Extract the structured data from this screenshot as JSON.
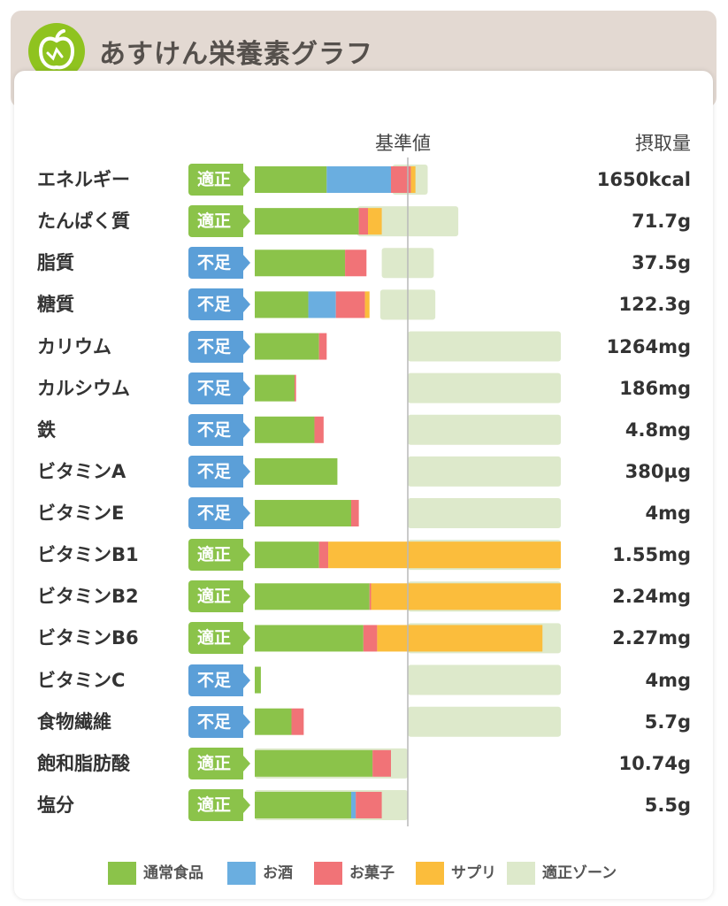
{
  "header": {
    "title": "あすけん栄養素グラフ",
    "logo_icon": "apple-icon"
  },
  "columns": {
    "standard": "基準値",
    "intake": "摂取量"
  },
  "colors": {
    "normal_food": "#8bc34a",
    "alcohol": "#6aaee0",
    "snacks": "#f17377",
    "supplement": "#fbbd3c",
    "zone": "#dde9cb",
    "badge_ok": "#8bc34a",
    "badge_low": "#5b9fd8"
  },
  "chart_data": {
    "type": "bar",
    "stacked": true,
    "x_unit": "percent of standard value (基準値 = 100)",
    "series": [
      {
        "name": "通常食品",
        "color": "#8bc34a"
      },
      {
        "name": "お酒",
        "color": "#6aaee0"
      },
      {
        "name": "お菓子",
        "color": "#f17377"
      },
      {
        "name": "サプリ",
        "color": "#fbbd3c"
      },
      {
        "name": "適正ゾーン",
        "color": "#dde9cb"
      }
    ],
    "rows": [
      {
        "label": "エネルギー",
        "status": "適正",
        "value_text": "1650kcal",
        "segments": [
          47,
          42,
          13,
          3
        ],
        "zone": [
          90,
          113
        ]
      },
      {
        "label": "たんぱく質",
        "status": "適正",
        "value_text": "71.7g",
        "segments": [
          68,
          0,
          6,
          9
        ],
        "zone": [
          67,
          133
        ]
      },
      {
        "label": "脂質",
        "status": "不足",
        "value_text": "37.5g",
        "segments": [
          59,
          0,
          14,
          0
        ],
        "zone": [
          83,
          117
        ]
      },
      {
        "label": "糖質",
        "status": "不足",
        "value_text": "122.3g",
        "segments": [
          35,
          18,
          19,
          3
        ],
        "zone": [
          82,
          118
        ]
      },
      {
        "label": "カリウム",
        "status": "不足",
        "value_text": "1264mg",
        "segments": [
          42,
          0,
          5,
          0
        ],
        "zone": [
          100,
          200
        ]
      },
      {
        "label": "カルシウム",
        "status": "不足",
        "value_text": "186mg",
        "segments": [
          26,
          0,
          1,
          0
        ],
        "zone": [
          100,
          200
        ]
      },
      {
        "label": "鉄",
        "status": "不足",
        "value_text": "4.8mg",
        "segments": [
          39,
          0,
          6,
          0
        ],
        "zone": [
          100,
          200
        ]
      },
      {
        "label": "ビタミンA",
        "status": "不足",
        "value_text": "380µg",
        "segments": [
          54,
          0,
          0,
          0
        ],
        "zone": [
          100,
          200
        ]
      },
      {
        "label": "ビタミンE",
        "status": "不足",
        "value_text": "4mg",
        "segments": [
          63,
          0,
          5,
          0
        ],
        "zone": [
          100,
          200
        ]
      },
      {
        "label": "ビタミンB1",
        "status": "適正",
        "value_text": "1.55mg",
        "segments": [
          42,
          0,
          6,
          152
        ],
        "zone": [
          100,
          200
        ]
      },
      {
        "label": "ビタミンB2",
        "status": "適正",
        "value_text": "2.24mg",
        "segments": [
          75,
          0,
          1,
          124
        ],
        "zone": [
          100,
          200
        ]
      },
      {
        "label": "ビタミンB6",
        "status": "適正",
        "value_text": "2.27mg",
        "segments": [
          71,
          0,
          9,
          108
        ],
        "zone": [
          100,
          200
        ]
      },
      {
        "label": "ビタミンC",
        "status": "不足",
        "value_text": "4mg",
        "segments": [
          4,
          0,
          0,
          0
        ],
        "zone": [
          100,
          200
        ]
      },
      {
        "label": "食物繊維",
        "status": "不足",
        "value_text": "5.7g",
        "segments": [
          24,
          0,
          8,
          0
        ],
        "zone": [
          100,
          200
        ]
      },
      {
        "label": "飽和脂肪酸",
        "status": "適正",
        "value_text": "10.74g",
        "segments": [
          77,
          0,
          12,
          0
        ],
        "zone": [
          0,
          100
        ]
      },
      {
        "label": "塩分",
        "status": "適正",
        "value_text": "5.5g",
        "segments": [
          63,
          3,
          17,
          0
        ],
        "zone": [
          0,
          100
        ]
      }
    ]
  },
  "legend": [
    {
      "label": "通常食品",
      "color": "#8bc34a"
    },
    {
      "label": "お酒",
      "color": "#6aaee0"
    },
    {
      "label": "お菓子",
      "color": "#f17377"
    },
    {
      "label": "サプリ",
      "color": "#fbbd3c"
    },
    {
      "label": "適正ゾーン",
      "color": "#dde9cb"
    }
  ]
}
